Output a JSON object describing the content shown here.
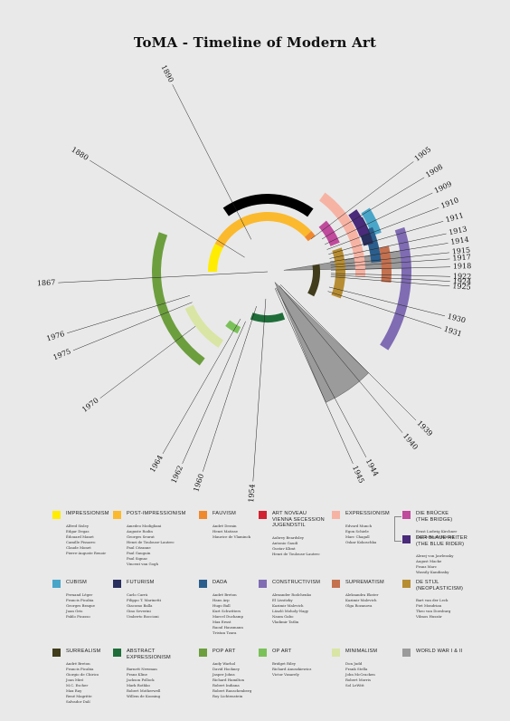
{
  "page": {
    "background": "#e9e9e9"
  },
  "title": "ToMA - Timeline of Modern Art",
  "timeline": {
    "line_color": "#222222",
    "year_labels": [
      "1867",
      "1880",
      "1890",
      "1905",
      "1908",
      "1909",
      "1910",
      "1911",
      "1913",
      "1914",
      "1915",
      "1917",
      "1918",
      "1922",
      "1924",
      "1925",
      "1930",
      "1931",
      "1939",
      "1940",
      "1944",
      "1945",
      "1954",
      "1960",
      "1962",
      "1964",
      "1970",
      "1975",
      "1976"
    ],
    "movements": [
      {
        "name": "Impressionism",
        "color": "#ffec00",
        "start": 1867,
        "end": 1880
      },
      {
        "name": "Post-Impressionism",
        "color": "#fbb92d",
        "start": 1880,
        "end": 1905
      },
      {
        "name": "Fauvism",
        "color": "#f0892e",
        "start": 1905,
        "end": 1908
      },
      {
        "name": "Art Nouveau",
        "color": "#d22130",
        "start": 1890,
        "end": 1910
      },
      {
        "name": "Die Brücke",
        "color": "#c04a9c",
        "start": 1905,
        "end": 1913
      },
      {
        "name": "Der Blaue Reiter",
        "color": "#4a2a7a",
        "start": 1911,
        "end": 1914
      },
      {
        "name": "Expressionism",
        "color": "#f6b3a4",
        "start": 1905,
        "end": 1925
      },
      {
        "name": "Cubism",
        "color": "#4aa6c9",
        "start": 1908,
        "end": 1914
      },
      {
        "name": "Futurism",
        "color": "#29305e",
        "start": 1909,
        "end": 1918
      },
      {
        "name": "Dada",
        "color": "#2b5e8c",
        "start": 1915,
        "end": 1922
      },
      {
        "name": "Suprematism",
        "color": "#c47150",
        "start": 1915,
        "end": 1924
      },
      {
        "name": "De Stijl",
        "color": "#b78d33",
        "start": 1917,
        "end": 1931
      },
      {
        "name": "Constructivism",
        "color": "#7f6cb3",
        "start": 1913,
        "end": 1930
      },
      {
        "name": "Surrealism",
        "color": "#403c1c",
        "start": 1924,
        "end": 1945
      },
      {
        "name": "Abstract Expressionism",
        "color": "#1f6e3a",
        "start": 1940,
        "end": 1954
      },
      {
        "name": "Pop Art",
        "color": "#6c9e3e",
        "start": 1954,
        "end": 1970
      },
      {
        "name": "Op Art",
        "color": "#7ac159",
        "start": 1960,
        "end": 1964
      },
      {
        "name": "Minimalism",
        "color": "#d9e5a4",
        "start": 1962,
        "end": 1976
      },
      {
        "name": "World War I",
        "color": "#9b9b9b",
        "start": 1914,
        "end": 1918
      },
      {
        "name": "World War II",
        "color": "#9b9b9b",
        "start": 1939,
        "end": 1945
      }
    ]
  },
  "legend": [
    {
      "title": "Impressionism",
      "color": "#ffec00",
      "artists": [
        "Alfred Sisley",
        "Edgar Degas",
        "Édouard Manet",
        "Camille Pissarro",
        "Claude Monet",
        "Pierre-Auguste Renoir"
      ]
    },
    {
      "title": "Post-Impressionism",
      "color": "#fbb92d",
      "artists": [
        "Amedeo Modigliani",
        "Auguste Rodin",
        "Georges Seurat",
        "Henri de Toulouse-Lautrec",
        "Paul Cézanne",
        "Paul Gauguin",
        "Paul Signac",
        "Vincent van Gogh"
      ]
    },
    {
      "title": "Fauvism",
      "color": "#f0892e",
      "artists": [
        "André Derain",
        "Henri Matisse",
        "Maurice de Vlaminck"
      ]
    },
    {
      "title": "Art Noveau\nVienna Secession\nJugendstil",
      "color": "#d22130",
      "artists": [
        "Aubrey Beardsley",
        "Antonio Gaudí",
        "Gustav Klimt",
        "Henri de Toulouse-Lautrec"
      ]
    },
    {
      "title": "Expressionism",
      "color": "#f6b3a4",
      "artists": [
        "Edvard Munch",
        "Egon Schiele",
        "Marc Chagall",
        "Oskar Kokoschka"
      ]
    },
    {
      "title": "Die Brücke\n(The Bridge)",
      "color": "#c04a9c",
      "artists": [
        "Ernst Ludwig Kirchner",
        "Karl Schmidt-Rottluff"
      ]
    },
    {
      "title": "Der Blaue Reiter\n(The Blue Rider)",
      "color": "#4a2a7a",
      "artists": [
        "Alexej von Jawlensky",
        "August Macke",
        "Franz Marc",
        "Wassily Kandinsky"
      ]
    },
    {
      "title": "Cubism",
      "color": "#4aa6c9",
      "artists": [
        "Fernand Léger",
        "Francis Picabia",
        "Georges Braque",
        "Juan Gris",
        "Pablo Picasso"
      ]
    },
    {
      "title": "Futurism",
      "color": "#29305e",
      "artists": [
        "Carlo Carrà",
        "Filippo T. Marinetti",
        "Giacomo Balla",
        "Gino Severini",
        "Umberto Boccioni"
      ]
    },
    {
      "title": "Dada",
      "color": "#2b5e8c",
      "artists": [
        "André Breton",
        "Hans Arp",
        "Hugo Ball",
        "Kurt Schwitters",
        "Marcel Duchamp",
        "Max Ernst",
        "Raoul Hausmann",
        "Tristan Tzara"
      ]
    },
    {
      "title": "Constructivism",
      "color": "#7f6cb3",
      "artists": [
        "Alexander Rodchenko",
        "El Lissitzky",
        "Kazimir Malevich",
        "László Moholy-Nagy",
        "Naum Gabo",
        "Vladimir Tatlin"
      ]
    },
    {
      "title": "Suprematism",
      "color": "#c47150",
      "artists": [
        "Aleksandra Ekster",
        "Kazimir Malevich",
        "Olga Rozanova"
      ]
    },
    {
      "title": "De Stijl\n(Neoplasticism)",
      "color": "#b78d33",
      "artists": [
        "Bart van der Leck",
        "Piet Mondrian",
        "Theo van Doesburg",
        "Vilmos Huszár"
      ]
    },
    {
      "title": "Surrealism",
      "color": "#403c1c",
      "artists": [
        "André Breton",
        "Francis Picabia",
        "Giorgio de Chirico",
        "Joan Miró",
        "M.C. Escher",
        "Max Ray",
        "René Magritte",
        "Salvador Dalí"
      ]
    },
    {
      "title": "Abstract\nExpressionism",
      "color": "#1f6e3a",
      "artists": [
        "Barnett Newman",
        "Franz Kline",
        "Jackson Pollock",
        "Mark Rothko",
        "Robert Motherwell",
        "Willem de Kooning"
      ]
    },
    {
      "title": "Pop Art",
      "color": "#6c9e3e",
      "artists": [
        "Andy Warhol",
        "David Hockney",
        "Jasper Johns",
        "Richard Hamilton",
        "Robert Indiana",
        "Robert Rauschenberg",
        "Roy Lichtenstein"
      ]
    },
    {
      "title": "Op Art",
      "color": "#7ac159",
      "artists": [
        "Bridget Riley",
        "Richard Anuszkiewicz",
        "Victor Vasarely"
      ]
    },
    {
      "title": "Minimalism",
      "color": "#d9e5a4",
      "artists": [
        "Don Judd",
        "Frank Stella",
        "John McCracken",
        "Robert Morris",
        "Sol LeWitt"
      ]
    },
    {
      "title": "World War I & II",
      "color": "#9b9b9b",
      "artists": []
    }
  ]
}
